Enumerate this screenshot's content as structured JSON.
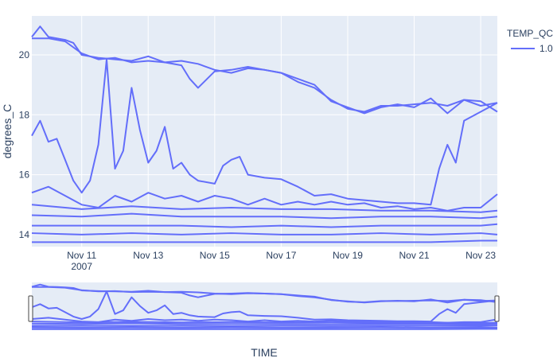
{
  "chart_data": {
    "type": "line",
    "title": "",
    "xlabel": "TIME",
    "ylabel": "degrees_C",
    "x_unit": "date",
    "xlim": [
      "2007-11-09T12:00",
      "2007-11-23T12:00"
    ],
    "ylim": [
      13.6,
      21.3
    ],
    "grid": true,
    "range_slider": true,
    "legend_placement": "top-right",
    "legend_title": "TEMP_QC",
    "x_tick_labels": [
      "Nov 11",
      "Nov 13",
      "Nov 15",
      "Nov 17",
      "Nov 19",
      "Nov 21",
      "Nov 23"
    ],
    "x_tick_sublabel": "2007",
    "y_tick_labels": [
      "14",
      "16",
      "18",
      "20"
    ],
    "y_ticks": [
      14,
      16,
      18,
      20
    ],
    "series": [
      {
        "name": "1.0",
        "color": "#636efa",
        "lines": [
          {
            "x": [
              "2007-11-09T12:00",
              "2007-11-09T18:00",
              "2007-11-10T00:00",
              "2007-11-10T06:00",
              "2007-11-10T12:00",
              "2007-11-10T18:00",
              "2007-11-11T00:00",
              "2007-11-11T12:00",
              "2007-11-12T00:00",
              "2007-11-12T12:00",
              "2007-11-13T00:00",
              "2007-11-13T12:00",
              "2007-11-14T00:00",
              "2007-11-14T12:00",
              "2007-11-15T00:00",
              "2007-11-15T12:00",
              "2007-11-16T00:00",
              "2007-11-16T12:00",
              "2007-11-17T00:00",
              "2007-11-17T12:00",
              "2007-11-18T00:00",
              "2007-11-18T12:00",
              "2007-11-19T00:00",
              "2007-11-19T12:00",
              "2007-11-20T00:00",
              "2007-11-20T12:00",
              "2007-11-21T00:00",
              "2007-11-21T12:00",
              "2007-11-22T00:00",
              "2007-11-22T12:00",
              "2007-11-23T00:00",
              "2007-11-23T12:00"
            ],
            "y": [
              20.6,
              20.95,
              20.6,
              20.55,
              20.5,
              20.4,
              20.0,
              19.9,
              19.85,
              19.8,
              19.95,
              19.75,
              19.8,
              19.7,
              19.5,
              19.4,
              19.55,
              19.5,
              19.4,
              19.1,
              18.9,
              18.5,
              18.2,
              18.1,
              18.3,
              18.3,
              18.35,
              18.4,
              18.3,
              18.5,
              18.45,
              18.1
            ]
          },
          {
            "x": [
              "2007-11-09T12:00",
              "2007-11-10T00:00",
              "2007-11-10T12:00",
              "2007-11-11T00:00",
              "2007-11-11T12:00",
              "2007-11-12T00:00",
              "2007-11-12T12:00",
              "2007-11-13T00:00",
              "2007-11-13T12:00",
              "2007-11-14T00:00",
              "2007-11-14T06:00",
              "2007-11-14T12:00",
              "2007-11-15T00:00",
              "2007-11-15T12:00",
              "2007-11-16T00:00",
              "2007-11-16T12:00",
              "2007-11-17T00:00",
              "2007-11-17T12:00",
              "2007-11-18T00:00",
              "2007-11-18T12:00",
              "2007-11-19T00:00",
              "2007-11-19T12:00",
              "2007-11-20T00:00",
              "2007-11-20T12:00",
              "2007-11-21T00:00",
              "2007-11-21T12:00",
              "2007-11-22T00:00",
              "2007-11-22T12:00",
              "2007-11-23T00:00",
              "2007-11-23T12:00"
            ],
            "y": [
              20.55,
              20.55,
              20.45,
              20.05,
              19.85,
              19.9,
              19.75,
              19.8,
              19.75,
              19.65,
              19.2,
              18.9,
              19.45,
              19.5,
              19.6,
              19.5,
              19.4,
              19.2,
              19.0,
              18.45,
              18.25,
              18.05,
              18.25,
              18.35,
              18.25,
              18.55,
              18.05,
              18.5,
              18.3,
              18.4
            ]
          },
          {
            "x": [
              "2007-11-09T12:00",
              "2007-11-09T18:00",
              "2007-11-10T00:00",
              "2007-11-10T06:00",
              "2007-11-10T12:00",
              "2007-11-10T18:00",
              "2007-11-11T00:00",
              "2007-11-11T06:00",
              "2007-11-11T12:00",
              "2007-11-11T18:00",
              "2007-11-12T00:00",
              "2007-11-12T06:00",
              "2007-11-12T12:00",
              "2007-11-12T18:00",
              "2007-11-13T00:00",
              "2007-11-13T06:00",
              "2007-11-13T12:00",
              "2007-11-13T18:00",
              "2007-11-14T00:00",
              "2007-11-14T06:00",
              "2007-11-14T12:00",
              "2007-11-15T00:00",
              "2007-11-15T06:00",
              "2007-11-15T12:00",
              "2007-11-15T18:00",
              "2007-11-16T00:00",
              "2007-11-16T12:00",
              "2007-11-17T00:00",
              "2007-11-17T12:00",
              "2007-11-18T00:00",
              "2007-11-18T12:00",
              "2007-11-19T00:00",
              "2007-11-19T12:00",
              "2007-11-20T00:00",
              "2007-11-20T12:00",
              "2007-11-21T00:00",
              "2007-11-21T12:00",
              "2007-11-21T18:00",
              "2007-11-22T00:00",
              "2007-11-22T06:00",
              "2007-11-22T12:00",
              "2007-11-23T00:00",
              "2007-11-23T12:00"
            ],
            "y": [
              17.3,
              17.8,
              17.1,
              17.2,
              16.5,
              15.8,
              15.4,
              15.8,
              17.0,
              19.85,
              16.2,
              16.8,
              18.9,
              17.5,
              16.4,
              16.8,
              17.6,
              16.2,
              16.4,
              16.0,
              15.8,
              15.7,
              16.3,
              16.5,
              16.6,
              16.0,
              15.9,
              15.85,
              15.6,
              15.3,
              15.35,
              15.2,
              15.15,
              15.1,
              15.05,
              15.05,
              15.0,
              16.2,
              17.0,
              16.4,
              17.8,
              18.1,
              18.4
            ]
          },
          {
            "x": [
              "2007-11-09T12:00",
              "2007-11-10T00:00",
              "2007-11-10T12:00",
              "2007-11-11T00:00",
              "2007-11-11T12:00",
              "2007-11-12T00:00",
              "2007-11-12T12:00",
              "2007-11-13T00:00",
              "2007-11-13T12:00",
              "2007-11-14T00:00",
              "2007-11-14T12:00",
              "2007-11-15T00:00",
              "2007-11-15T12:00",
              "2007-11-16T00:00",
              "2007-11-16T12:00",
              "2007-11-17T00:00",
              "2007-11-17T12:00",
              "2007-11-18T00:00",
              "2007-11-18T12:00",
              "2007-11-19T00:00",
              "2007-11-19T12:00",
              "2007-11-20T00:00",
              "2007-11-20T12:00",
              "2007-11-21T00:00",
              "2007-11-21T12:00",
              "2007-11-22T00:00",
              "2007-11-22T12:00",
              "2007-11-23T00:00",
              "2007-11-23T12:00"
            ],
            "y": [
              15.4,
              15.6,
              15.3,
              15.0,
              14.9,
              15.3,
              15.1,
              15.4,
              15.2,
              15.3,
              15.1,
              15.3,
              15.2,
              15.0,
              15.2,
              15.0,
              15.1,
              15.0,
              15.1,
              15.0,
              15.05,
              14.9,
              14.95,
              14.85,
              14.9,
              14.8,
              14.9,
              14.9,
              15.35
            ]
          },
          {
            "x": [
              "2007-11-09T12:00",
              "2007-11-11T00:00",
              "2007-11-12T12:00",
              "2007-11-14T00:00",
              "2007-11-15T12:00",
              "2007-11-17T00:00",
              "2007-11-18T12:00",
              "2007-11-20T00:00",
              "2007-11-21T12:00",
              "2007-11-23T00:00",
              "2007-11-23T12:00"
            ],
            "y": [
              15.0,
              14.85,
              14.95,
              14.85,
              14.9,
              14.85,
              14.85,
              14.8,
              14.8,
              14.75,
              14.8
            ]
          },
          {
            "x": [
              "2007-11-09T12:00",
              "2007-11-11T00:00",
              "2007-11-12T12:00",
              "2007-11-14T00:00",
              "2007-11-15T12:00",
              "2007-11-17T00:00",
              "2007-11-18T12:00",
              "2007-11-20T00:00",
              "2007-11-21T12:00",
              "2007-11-23T00:00",
              "2007-11-23T12:00"
            ],
            "y": [
              14.65,
              14.6,
              14.7,
              14.6,
              14.6,
              14.6,
              14.55,
              14.6,
              14.6,
              14.55,
              14.6
            ]
          },
          {
            "x": [
              "2007-11-09T12:00",
              "2007-11-11T00:00",
              "2007-11-12T12:00",
              "2007-11-14T00:00",
              "2007-11-15T12:00",
              "2007-11-17T00:00",
              "2007-11-18T12:00",
              "2007-11-20T00:00",
              "2007-11-21T12:00",
              "2007-11-23T00:00",
              "2007-11-23T12:00"
            ],
            "y": [
              14.3,
              14.3,
              14.3,
              14.3,
              14.25,
              14.3,
              14.25,
              14.3,
              14.3,
              14.3,
              14.35
            ]
          },
          {
            "x": [
              "2007-11-09T12:00",
              "2007-11-11T00:00",
              "2007-11-12T12:00",
              "2007-11-14T00:00",
              "2007-11-15T12:00",
              "2007-11-17T00:00",
              "2007-11-18T12:00",
              "2007-11-20T00:00",
              "2007-11-21T12:00",
              "2007-11-23T00:00",
              "2007-11-23T12:00"
            ],
            "y": [
              14.05,
              14.0,
              14.05,
              14.0,
              14.05,
              14.0,
              14.0,
              14.05,
              14.0,
              14.05,
              14.0
            ]
          },
          {
            "x": [
              "2007-11-09T12:00",
              "2007-11-11T00:00",
              "2007-11-12T12:00",
              "2007-11-14T00:00",
              "2007-11-15T12:00",
              "2007-11-17T00:00",
              "2007-11-18T12:00",
              "2007-11-20T00:00",
              "2007-11-21T12:00",
              "2007-11-23T00:00",
              "2007-11-23T12:00"
            ],
            "y": [
              13.75,
              13.75,
              13.75,
              13.75,
              13.75,
              13.75,
              13.75,
              13.75,
              13.75,
              13.8,
              13.8
            ]
          }
        ]
      }
    ]
  }
}
